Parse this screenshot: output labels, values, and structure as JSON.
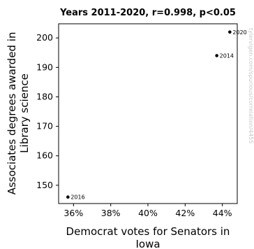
{
  "chart_data": {
    "type": "scatter",
    "title": "Years 2011-2020, r=0.998, p<0.05",
    "xlabel": [
      "Democrat votes for Senators in",
      "Iowa"
    ],
    "ylabel": [
      "Associates degrees awarded in",
      "Library science"
    ],
    "xlim": [
      35.2,
      44.8
    ],
    "ylim": [
      143.8,
      204.8
    ],
    "xticks": [
      36,
      38,
      40,
      42,
      44
    ],
    "xtick_labels": [
      "36%",
      "38%",
      "40%",
      "42%",
      "44%"
    ],
    "yticks": [
      150,
      160,
      170,
      180,
      190,
      200
    ],
    "ytick_labels": [
      "150",
      "160",
      "170",
      "180",
      "190",
      "200"
    ],
    "points": [
      {
        "label": "2016",
        "x": 35.7,
        "y": 146
      },
      {
        "label": "2014",
        "x": 43.7,
        "y": 194
      },
      {
        "label": "2020",
        "x": 44.4,
        "y": 202
      }
    ],
    "watermark": "tylervigen.com/spurious/correlation/4455",
    "grid": false
  }
}
